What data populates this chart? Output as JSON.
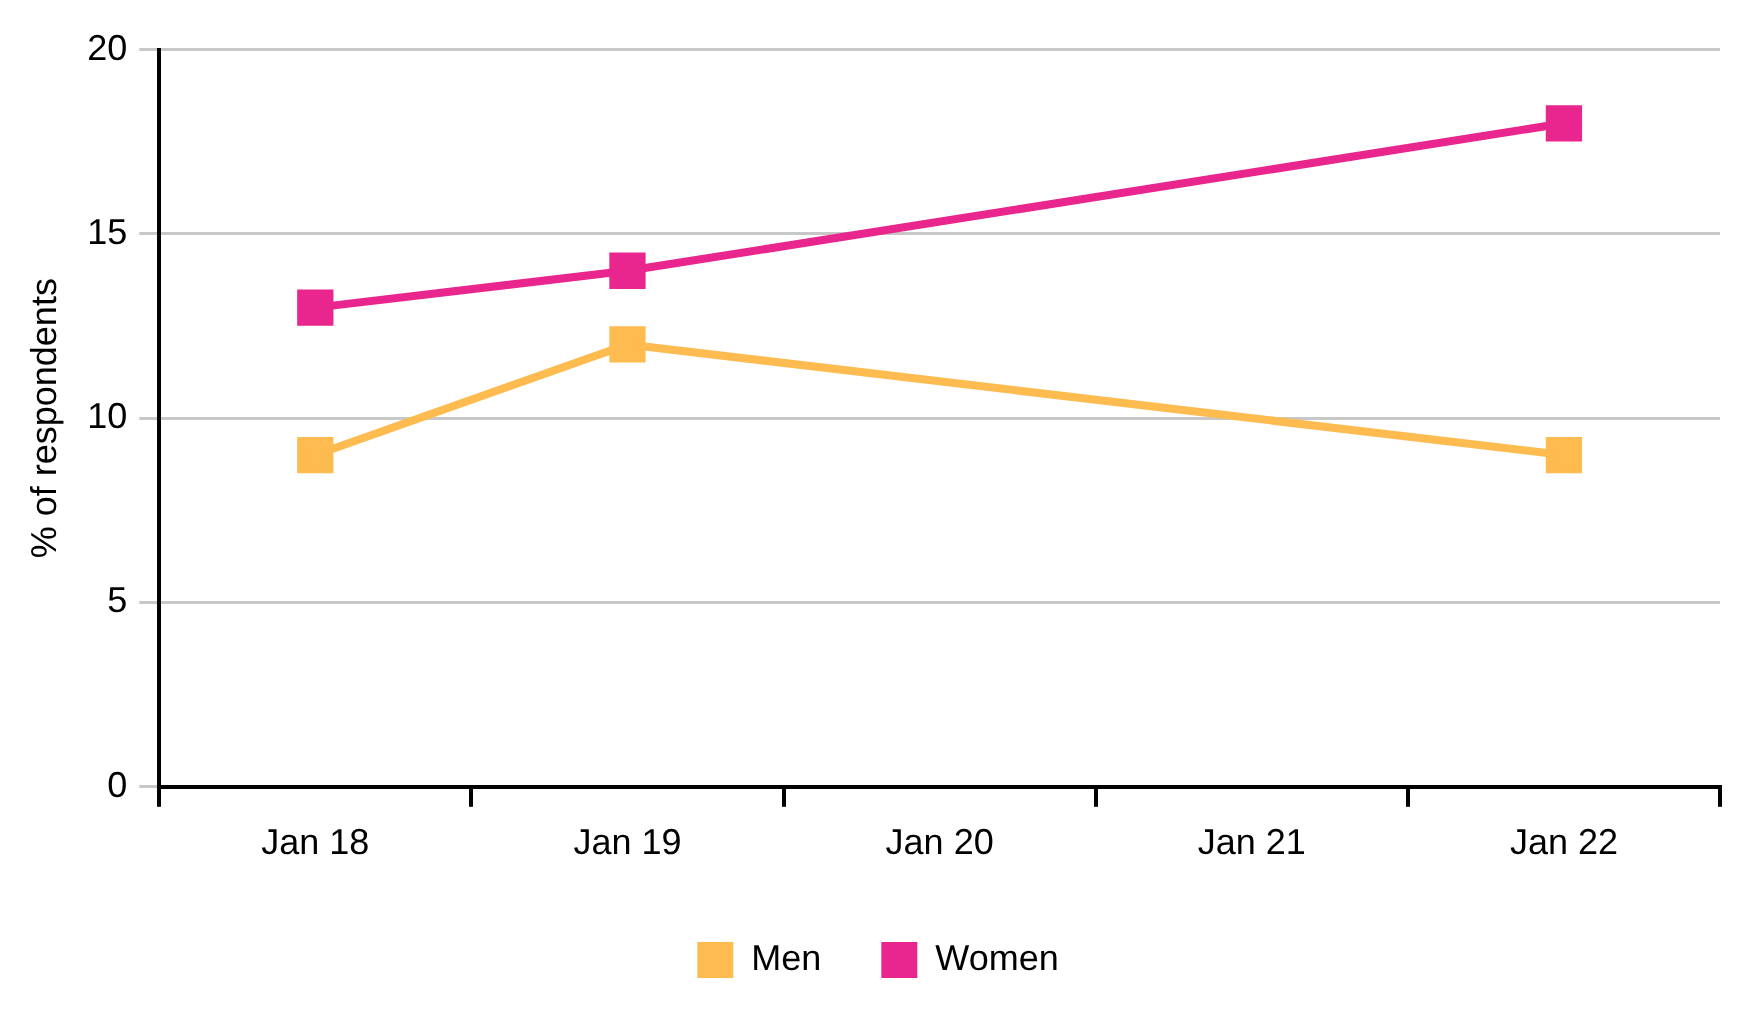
{
  "chart_data": {
    "type": "line",
    "ylabel": "% of respondents",
    "categories": [
      "Jan 18",
      "Jan 19",
      "Jan 20",
      "Jan 21",
      "Jan 22"
    ],
    "series": [
      {
        "name": "Men",
        "color": "#fdbb50",
        "values": [
          9,
          12,
          null,
          null,
          9
        ]
      },
      {
        "name": "Women",
        "color": "#e9258e",
        "values": [
          13,
          14,
          null,
          null,
          18
        ]
      }
    ],
    "ylim": [
      0,
      20
    ],
    "yticks": [
      0,
      5,
      10,
      15,
      20
    ],
    "grid": "y",
    "legend": "bottom",
    "marker": "square",
    "line_style": "solid"
  }
}
